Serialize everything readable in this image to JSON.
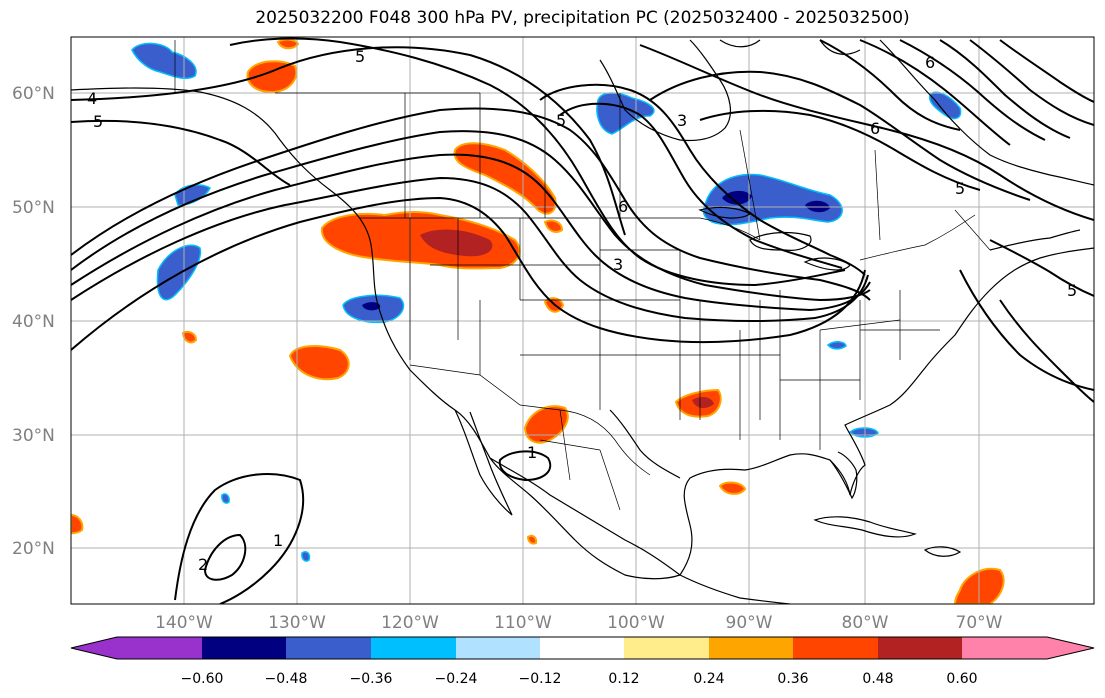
{
  "title": "2025032200 F048 300 hPa PV, precipitation PC (2025032400 - 2025032500)",
  "map": {
    "lat_labels": [
      "60°N",
      "50°N",
      "40°N",
      "30°N",
      "20°N"
    ],
    "lon_labels": [
      "140°W",
      "130°W",
      "120°W",
      "110°W",
      "100°W",
      "90°W",
      "80°W",
      "70°W"
    ],
    "gridline_color": "#b0b0b0",
    "contour_color": "#000000",
    "contour_labels": [
      {
        "text": "5",
        "region": "north-pacific"
      },
      {
        "text": "4",
        "region": "west-edge"
      },
      {
        "text": "5",
        "region": "west-edge"
      },
      {
        "text": "5",
        "region": "western-canada"
      },
      {
        "text": "3",
        "region": "hudson-bay"
      },
      {
        "text": "6",
        "region": "central-canada"
      },
      {
        "text": "6",
        "region": "northern-plains"
      },
      {
        "text": "3",
        "region": "northern-plains"
      },
      {
        "text": "6",
        "region": "labrador"
      },
      {
        "text": "5",
        "region": "quebec"
      },
      {
        "text": "5",
        "region": "atlantic"
      },
      {
        "text": "1",
        "region": "mexico"
      },
      {
        "text": "2",
        "region": "eastern-pacific"
      },
      {
        "text": "1",
        "region": "eastern-pacific"
      }
    ]
  },
  "colorbar": {
    "ticks": [
      "−0.60",
      "−0.48",
      "−0.36",
      "−0.24",
      "−0.12",
      "0.12",
      "0.24",
      "0.36",
      "0.48",
      "0.60"
    ],
    "colors": [
      "#9932CC",
      "#000080",
      "#3A5FCD",
      "#00BFFF",
      "#B0E2FF",
      "#FFFFFF",
      "#FFEC8B",
      "#FFA500",
      "#FF4500",
      "#B22222",
      "#FF82AB"
    ]
  },
  "precip_colors": {
    "neg_strong": "#000080",
    "neg_mid": "#3A5FCD",
    "neg_light": "#00BFFF",
    "pos_light": "#FFEC8B",
    "pos_mid": "#FFA500",
    "pos_strong": "#FF4500",
    "pos_max": "#B22222"
  }
}
